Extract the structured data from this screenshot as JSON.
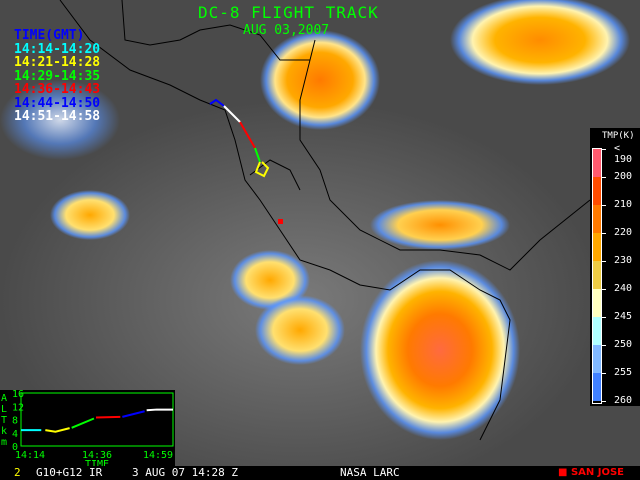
{
  "header": {
    "title": "DC-8 FLIGHT TRACK",
    "date": "AUG 03,2007"
  },
  "legend": {
    "heading": "TIME(GMT)",
    "heading_color": "#0000ff",
    "items": [
      {
        "label": "14:14-14:20",
        "color": "#00ffff"
      },
      {
        "label": "14:21-14:28",
        "color": "#ffff00"
      },
      {
        "label": "14:29-14:35",
        "color": "#00ff00"
      },
      {
        "label": "14:36-14:43",
        "color": "#ff0000"
      },
      {
        "label": "14:44-14:50",
        "color": "#0000ff"
      },
      {
        "label": "14:51-14:58",
        "color": "#ffffff"
      }
    ]
  },
  "colorbar": {
    "title": "TMP(K)",
    "labels": [
      "< 190",
      "200",
      "210",
      "220",
      "230",
      "240",
      "245",
      "250",
      "255",
      "260"
    ],
    "colors": [
      "#ff5a6e",
      "#ff4c00",
      "#ff7a00",
      "#ffa800",
      "#eecc44",
      "#ffffc0",
      "#b0ffff",
      "#80b8ff",
      "#4080ff"
    ]
  },
  "altitude_inset": {
    "ylabel": [
      "A",
      "L",
      "T",
      "k",
      "m"
    ],
    "yticks": [
      "16",
      "12",
      "8",
      "4",
      "0"
    ],
    "ylim": [
      0,
      16
    ],
    "xticks": [
      "14:14",
      "14:36",
      "14:59"
    ],
    "xlabel": "TIME",
    "segments": [
      {
        "color": "#00ffff",
        "points": [
          [
            14.23,
            4.8
          ],
          [
            14.33,
            4.8
          ]
        ]
      },
      {
        "color": "#ffff00",
        "points": [
          [
            14.35,
            4.8
          ],
          [
            14.4,
            4.3
          ],
          [
            14.47,
            5.4
          ]
        ]
      },
      {
        "color": "#00ff00",
        "points": [
          [
            14.48,
            5.5
          ],
          [
            14.59,
            8.3
          ]
        ]
      },
      {
        "color": "#ff0000",
        "points": [
          [
            14.6,
            8.6
          ],
          [
            14.72,
            8.8
          ]
        ]
      },
      {
        "color": "#0000ff",
        "points": [
          [
            14.73,
            8.8
          ],
          [
            14.84,
            10.5
          ]
        ]
      },
      {
        "color": "#ffffff",
        "points": [
          [
            14.85,
            10.8
          ],
          [
            14.9,
            11
          ],
          [
            14.98,
            11
          ]
        ]
      }
    ]
  },
  "footer": {
    "frame": "2",
    "sensor": "G10+G12 IR",
    "datetime": "3 AUG 07 14:28 Z",
    "source": "NASA LARC",
    "marker_label": "SAN JOSE",
    "marker_color": "#ff0000"
  }
}
